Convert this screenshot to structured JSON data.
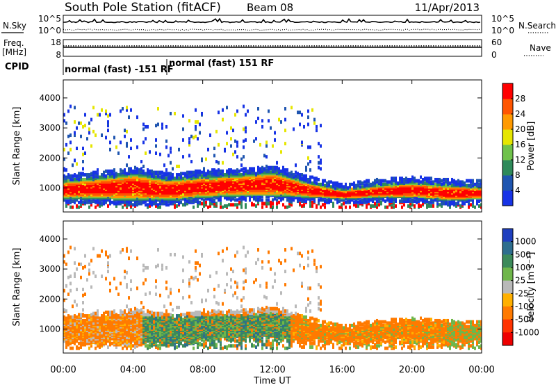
{
  "header": {
    "station": "South Pole Station (fitACF)",
    "beam": "Beam 08",
    "date": "11/Apr/2013"
  },
  "panels": {
    "nsky_label": "N.Sky",
    "nsky_ticks": [
      "10^5",
      "10^0"
    ],
    "nsearch_label": "N.Search",
    "nsearch_ticks": [
      "10^5",
      "10^0"
    ],
    "freq_label_1": "Freq.",
    "freq_label_2": "[MHz]",
    "freq_ticks": [
      "18",
      "8"
    ],
    "nave_label": "Nave",
    "nave_ticks": [
      "60",
      "0"
    ],
    "cpid_label": "CPID",
    "cpid_segments": [
      "normal (fast) -151 RF",
      "normal (fast) 151 RF"
    ]
  },
  "chart_data": [
    {
      "type": "heatmap",
      "name": "power",
      "ylabel": "Slant Range [km]",
      "ylim": [
        200,
        4600
      ],
      "yticks": [
        "1000",
        "2000",
        "3000",
        "4000"
      ],
      "xlabel": "",
      "xlim": [
        "00:00",
        "24:00"
      ],
      "colorbar": {
        "label": "Power [dB]",
        "levels": [
          0,
          4,
          8,
          12,
          16,
          20,
          24,
          28,
          32
        ],
        "tick_labels": [
          "4",
          "8",
          "12",
          "16",
          "20",
          "24",
          "28"
        ],
        "colors": [
          "#1733e6",
          "#1f55b0",
          "#2e8a5a",
          "#6fc24a",
          "#e6e600",
          "#ff9a00",
          "#ff5500",
          "#ff0000"
        ]
      },
      "approx_profile": {
        "time_h": [
          0,
          2,
          4,
          6,
          8,
          10,
          12,
          14,
          16,
          18,
          20,
          22,
          24
        ],
        "echo_center_km": [
          900,
          950,
          1000,
          900,
          1000,
          1050,
          1100,
          900,
          750,
          850,
          900,
          800,
          800
        ],
        "echo_halfwidth_km": [
          300,
          350,
          450,
          350,
          350,
          350,
          400,
          250,
          150,
          200,
          250,
          250,
          200
        ]
      }
    },
    {
      "type": "heatmap",
      "name": "velocity",
      "ylabel": "Slant Range [km]",
      "ylim": [
        200,
        4600
      ],
      "yticks": [
        "1000",
        "2000",
        "3000",
        "4000"
      ],
      "xlabel": "Time UT",
      "xticks": [
        "00:00",
        "04:00",
        "08:00",
        "12:00",
        "16:00",
        "20:00",
        "00:00"
      ],
      "colorbar": {
        "label": "Velocity [m s⁻¹]",
        "tick_labels": [
          "1000",
          "500",
          "100",
          "25",
          "-25",
          "-100",
          "-500",
          "-1000"
        ],
        "colors": [
          "#1f3fbf",
          "#2e6e8e",
          "#3c8a5a",
          "#6fb64a",
          "#b9b9b9",
          "#ffb000",
          "#ff7a00",
          "#ff3300",
          "#ee0000"
        ]
      }
    }
  ]
}
